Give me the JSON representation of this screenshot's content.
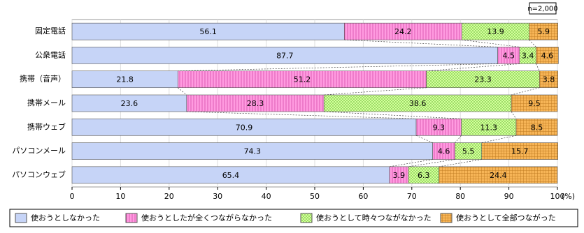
{
  "chart_data": {
    "type": "stacked-hbar",
    "annotation": "n=2,000",
    "categories": [
      "固定電話",
      "公衆電話",
      "携帯（音声）",
      "携帯メール",
      "携帯ウェブ",
      "パソコンメール",
      "パソコンウェブ"
    ],
    "series": [
      {
        "name": "使おうとしなかった",
        "color": "#c6d4f7",
        "values": [
          56.1,
          87.7,
          21.8,
          23.6,
          70.9,
          74.3,
          65.4
        ]
      },
      {
        "name": "使おうとしたが全くつながらなかった",
        "color": "#ff9be0",
        "values": [
          24.2,
          4.5,
          51.2,
          28.3,
          9.3,
          4.6,
          3.9
        ]
      },
      {
        "name": "使おうとして時々つながなかった",
        "color": "#d4ff9c",
        "values": [
          13.9,
          3.4,
          23.3,
          38.6,
          11.3,
          5.5,
          6.3
        ]
      },
      {
        "name": "使おうとして全部つながった",
        "color": "#f7b557",
        "values": [
          5.9,
          4.6,
          3.8,
          9.5,
          8.5,
          15.7,
          24.4
        ]
      }
    ],
    "xlim": [
      0,
      100
    ],
    "xticks": [
      0,
      10,
      20,
      30,
      40,
      50,
      60,
      70,
      80,
      90,
      100
    ],
    "x_unit": "(%)",
    "grid": true
  }
}
